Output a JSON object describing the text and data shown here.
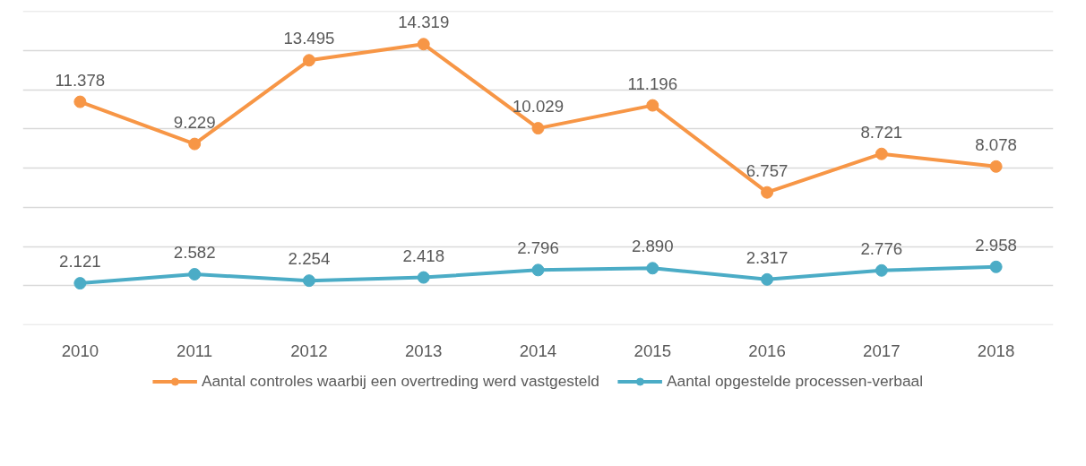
{
  "chart_data": {
    "type": "line",
    "categories": [
      "2010",
      "2011",
      "2012",
      "2013",
      "2014",
      "2015",
      "2016",
      "2017",
      "2018"
    ],
    "series": [
      {
        "name": "Aantal controles waarbij een overtreding werd vastgesteld",
        "color": "#f79646",
        "values": [
          11378,
          9229,
          13495,
          14319,
          10029,
          11196,
          6757,
          8721,
          8078
        ],
        "value_labels": [
          "11.378",
          "9.229",
          "13.495",
          "14.319",
          "10.029",
          "11.196",
          "6.757",
          "8.721",
          "8.078"
        ]
      },
      {
        "name": "Aantal opgestelde processen-verbaal",
        "color": "#4bacc6",
        "values": [
          2121,
          2582,
          2254,
          2418,
          2796,
          2890,
          2317,
          2776,
          2958
        ],
        "value_labels": [
          "2.121",
          "2.582",
          "2.254",
          "2.418",
          "2.796",
          "2.890",
          "2.317",
          "2.776",
          "2.958"
        ]
      }
    ],
    "yticks": [
      {
        "value": 0,
        "label": null
      },
      {
        "value": 2000,
        "label": null
      },
      {
        "value": 4000,
        "label": null
      },
      {
        "value": 6000,
        "label": null
      },
      {
        "value": 8000,
        "label": null
      },
      {
        "value": 10000,
        "label": null
      },
      {
        "value": 12000,
        "label": null
      },
      {
        "value": 14000,
        "label": null
      },
      {
        "value": 16000,
        "label": null
      }
    ],
    "tick_labels": "x",
    "grid": "y",
    "legend": "bottom",
    "marker": "circle",
    "line_style": "solid"
  }
}
